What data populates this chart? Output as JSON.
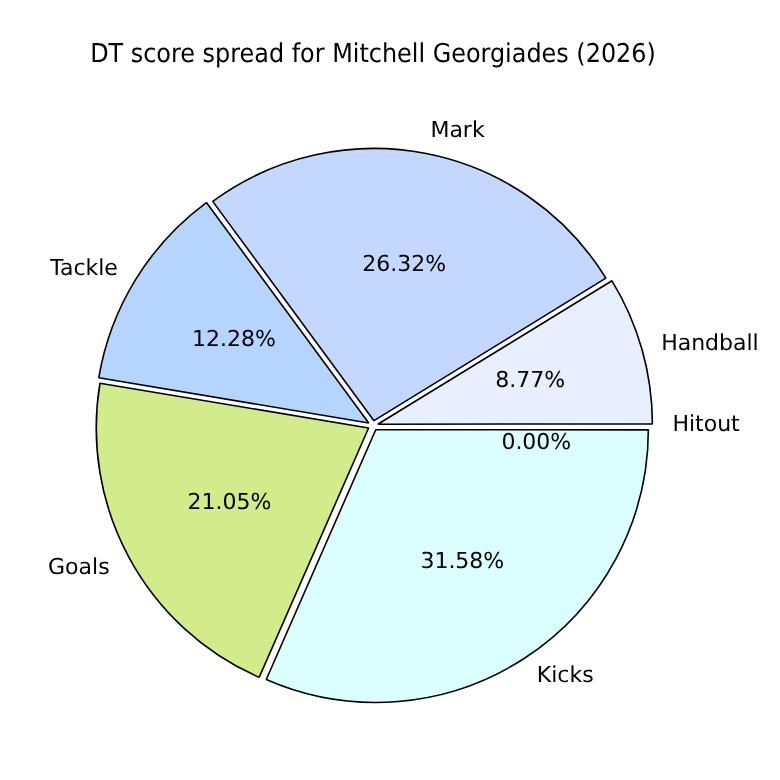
{
  "chart_data": {
    "type": "pie",
    "title": "DT score spread for Mitchell Georgiades (2026)",
    "categories": [
      "Hitout",
      "Kicks",
      "Goals",
      "Tackle",
      "Mark",
      "Handball"
    ],
    "values": [
      0.0,
      31.58,
      21.05,
      12.28,
      26.32,
      8.77
    ],
    "value_labels": [
      "0.00%",
      "31.58%",
      "21.05%",
      "12.28%",
      "26.32%",
      "8.77%"
    ],
    "colors": [
      "#f4f8ff",
      "#dbffff",
      "#d2ec8c",
      "#b5d5ff",
      "#c4d8ff",
      "#e8effe"
    ],
    "legend": false
  }
}
